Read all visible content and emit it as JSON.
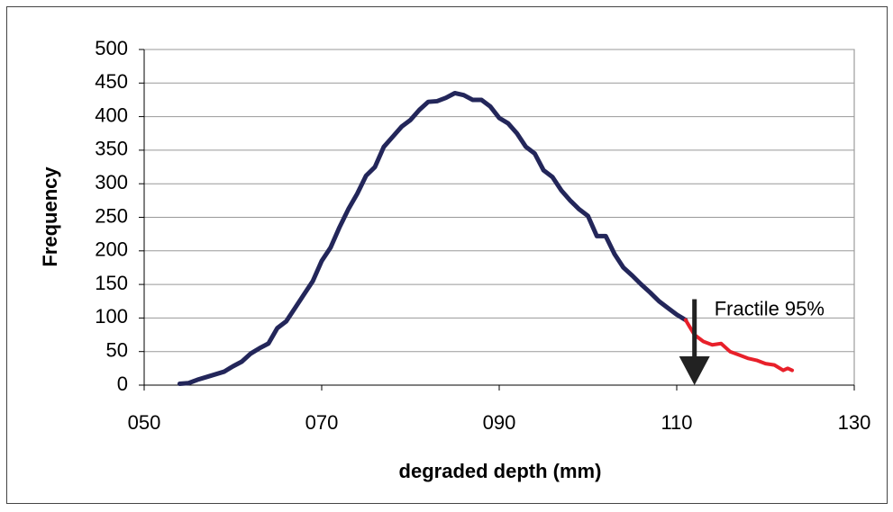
{
  "chart_data": {
    "type": "line",
    "xlabel": "degraded depth (mm)",
    "ylabel": "Frequency",
    "xlim": [
      50,
      130
    ],
    "ylim": [
      0,
      500
    ],
    "xticks": [
      {
        "value": 50,
        "label": "050"
      },
      {
        "value": 70,
        "label": "070"
      },
      {
        "value": 90,
        "label": "090"
      },
      {
        "value": 110,
        "label": "110"
      },
      {
        "value": 130,
        "label": "130"
      }
    ],
    "yticks": [
      0,
      50,
      100,
      150,
      200,
      250,
      300,
      350,
      400,
      450,
      500
    ],
    "grid": true,
    "series": [
      {
        "color": "#23265a",
        "x": [
          54,
          55,
          56,
          57,
          58,
          59,
          60,
          61,
          62,
          63,
          64,
          65,
          66,
          67,
          68,
          69,
          70,
          71,
          72,
          73,
          74,
          75,
          76,
          77,
          78,
          79,
          80,
          81,
          82,
          83,
          84,
          85,
          86,
          87,
          88,
          89,
          90,
          91,
          92,
          93,
          94,
          95,
          96,
          97,
          98,
          99,
          100,
          101,
          102,
          103,
          104,
          105,
          106,
          107,
          108,
          109,
          110,
          111
        ],
        "values": [
          2,
          3,
          8,
          12,
          16,
          20,
          28,
          35,
          47,
          55,
          62,
          85,
          95,
          115,
          135,
          155,
          185,
          205,
          235,
          262,
          285,
          312,
          325,
          355,
          370,
          385,
          395,
          410,
          422,
          423,
          428,
          435,
          432,
          425,
          425,
          415,
          398,
          390,
          375,
          355,
          345,
          320,
          310,
          290,
          275,
          262,
          252,
          222,
          222,
          195,
          175,
          163,
          150,
          138,
          125,
          115,
          105,
          97
        ]
      },
      {
        "color": "#e8202a",
        "x": [
          111,
          112,
          113,
          114,
          115,
          116,
          117,
          118,
          119,
          120,
          121,
          122,
          122.5,
          123
        ],
        "values": [
          97,
          75,
          65,
          60,
          62,
          50,
          45,
          40,
          37,
          32,
          30,
          22,
          25,
          22
        ]
      }
    ],
    "annotation": {
      "text": "Fractile 95%",
      "x": 112,
      "y_from": 128,
      "y_to": 0
    }
  }
}
